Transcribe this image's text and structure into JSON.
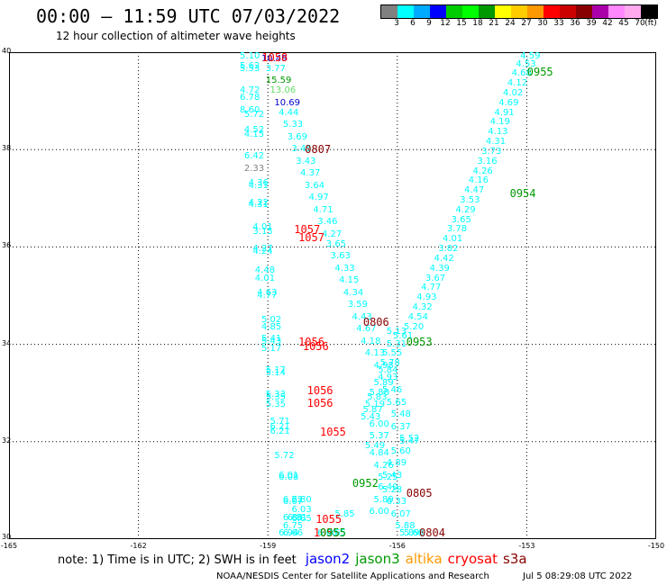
{
  "header": {
    "title": "00:00 — 11:59 UTC 07/03/2022",
    "subtitle": "12 hour collection of altimeter wave heights"
  },
  "legend": {
    "colors": [
      "#808080",
      "#00ffff",
      "#00aaff",
      "#0000ff",
      "#00cc00",
      "#00ff00",
      "#009900",
      "#ffff00",
      "#ffcc00",
      "#ff9900",
      "#ff0000",
      "#cc0000",
      "#880000",
      "#aa00aa",
      "#ff88ff",
      "#ffaaee",
      "#000000"
    ],
    "ticks": [
      "3",
      "6",
      "9",
      "12",
      "15",
      "18",
      "21",
      "24",
      "27",
      "30",
      "33",
      "36",
      "39",
      "42",
      "45",
      "70"
    ],
    "unit": "(ft)"
  },
  "axes": {
    "lat_labels": [
      "40",
      "38",
      "36",
      "34",
      "32",
      "30"
    ],
    "lon_labels": [
      "-165",
      "-162",
      "-159",
      "-156",
      "-153",
      "-150"
    ]
  },
  "map_data": {
    "extent": {
      "lon": [
        -165,
        -150
      ],
      "lat": [
        30,
        40
      ]
    },
    "points": [
      {
        "v": "5.10",
        "lon": -159.4,
        "lat": 39.9
      },
      {
        "v": "5.62",
        "lon": -159.4,
        "lat": 39.7
      },
      {
        "v": "5.53",
        "lon": -159.4,
        "lat": 39.65
      },
      {
        "v": "4.72",
        "lon": -159.4,
        "lat": 39.2
      },
      {
        "v": "6.78",
        "lon": -159.4,
        "lat": 39.05
      },
      {
        "v": "8.60",
        "lon": -159.4,
        "lat": 38.8
      },
      {
        "v": "5.72",
        "lon": -159.3,
        "lat": 38.7
      },
      {
        "v": "4.52",
        "lon": -159.3,
        "lat": 38.4
      },
      {
        "v": "4.15",
        "lon": -159.3,
        "lat": 38.3
      },
      {
        "v": "6.42",
        "lon": -159.3,
        "lat": 37.85
      },
      {
        "v": "4.36",
        "lon": -159.2,
        "lat": 37.3
      },
      {
        "v": "4.31",
        "lon": -159.2,
        "lat": 37.25
      },
      {
        "v": "4.22",
        "lon": -159.2,
        "lat": 36.9
      },
      {
        "v": "4.31",
        "lon": -159.2,
        "lat": 36.85
      },
      {
        "v": "4.01",
        "lon": -159.1,
        "lat": 36.4
      },
      {
        "v": "3.15",
        "lon": -159.1,
        "lat": 36.3
      },
      {
        "v": "4.27",
        "lon": -159.1,
        "lat": 35.95
      },
      {
        "v": "4.24",
        "lon": -159.1,
        "lat": 35.9
      },
      {
        "v": "4.48",
        "lon": -159.05,
        "lat": 35.5
      },
      {
        "v": "4.01",
        "lon": -159.05,
        "lat": 35.35
      },
      {
        "v": "4.63",
        "lon": -159.0,
        "lat": 35.05
      },
      {
        "v": "4.77",
        "lon": -159.0,
        "lat": 35.0
      },
      {
        "v": "5.02",
        "lon": -158.9,
        "lat": 34.5
      },
      {
        "v": "4.85",
        "lon": -158.9,
        "lat": 34.35
      },
      {
        "v": "5.41",
        "lon": -158.9,
        "lat": 34.1
      },
      {
        "v": "5.43",
        "lon": -158.9,
        "lat": 34.05
      },
      {
        "v": "5.17",
        "lon": -158.9,
        "lat": 33.9
      },
      {
        "v": "5.17",
        "lon": -158.8,
        "lat": 33.45
      },
      {
        "v": "5.14",
        "lon": -158.8,
        "lat": 33.4
      },
      {
        "v": "5.33",
        "lon": -158.8,
        "lat": 32.95
      },
      {
        "v": "5.35",
        "lon": -158.8,
        "lat": 32.75
      },
      {
        "v": "5.35",
        "lon": -158.8,
        "lat": 32.9
      },
      {
        "v": "5.71",
        "lon": -158.7,
        "lat": 32.4
      },
      {
        "v": "6.21",
        "lon": -158.7,
        "lat": 32.3
      },
      {
        "v": "6.21",
        "lon": -158.7,
        "lat": 32.2
      },
      {
        "v": "5.72",
        "lon": -158.6,
        "lat": 31.7
      },
      {
        "v": "6.01",
        "lon": -158.5,
        "lat": 31.3
      },
      {
        "v": "6.08",
        "lon": -158.5,
        "lat": 31.25
      },
      {
        "v": "6.72",
        "lon": -158.4,
        "lat": 30.8
      },
      {
        "v": "6.07",
        "lon": -158.4,
        "lat": 30.75
      },
      {
        "v": "6.80",
        "lon": -158.2,
        "lat": 30.8
      },
      {
        "v": "6.03",
        "lon": -158.2,
        "lat": 30.6
      },
      {
        "v": "6.88",
        "lon": -158.4,
        "lat": 30.42
      },
      {
        "v": "6.81",
        "lon": -158.3,
        "lat": 30.42
      },
      {
        "v": "6.75",
        "lon": -158.4,
        "lat": 30.25
      },
      {
        "v": "6.94",
        "lon": -158.5,
        "lat": 30.05
      },
      {
        "v": "6.66",
        "lon": -158.4,
        "lat": 30.05
      },
      {
        "v": "6.85",
        "lon": -158.2,
        "lat": 30.4
      },
      {
        "v": "15.59",
        "lon": -158.8,
        "lat": 39.4,
        "c": "#009900"
      },
      {
        "v": "13.06",
        "lon": -158.7,
        "lat": 39.2,
        "c": "#66dd66"
      },
      {
        "v": "10.69",
        "lon": -158.6,
        "lat": 38.95,
        "c": "#0000cc"
      },
      {
        "v": "10.49",
        "lon": -158.9,
        "lat": 39.85,
        "c": "#0000cc"
      },
      {
        "v": "3.77",
        "lon": -158.8,
        "lat": 39.65
      },
      {
        "v": "4.44",
        "lon": -158.5,
        "lat": 38.75
      },
      {
        "v": "5.33",
        "lon": -158.4,
        "lat": 38.5
      },
      {
        "v": "3.69",
        "lon": -158.3,
        "lat": 38.25
      },
      {
        "v": "3.45",
        "lon": -158.2,
        "lat": 38.0
      },
      {
        "v": "3.43",
        "lon": -158.1,
        "lat": 37.75
      },
      {
        "v": "4.37",
        "lon": -158.0,
        "lat": 37.5
      },
      {
        "v": "3.64",
        "lon": -157.9,
        "lat": 37.25
      },
      {
        "v": "4.97",
        "lon": -157.8,
        "lat": 37.0
      },
      {
        "v": "4.71",
        "lon": -157.7,
        "lat": 36.75
      },
      {
        "v": "3.46",
        "lon": -157.6,
        "lat": 36.5
      },
      {
        "v": "4.27",
        "lon": -157.5,
        "lat": 36.25
      },
      {
        "v": "3.65",
        "lon": -157.4,
        "lat": 36.05
      },
      {
        "v": "3.63",
        "lon": -157.3,
        "lat": 35.8
      },
      {
        "v": "4.33",
        "lon": -157.2,
        "lat": 35.55
      },
      {
        "v": "4.15",
        "lon": -157.1,
        "lat": 35.3
      },
      {
        "v": "4.34",
        "lon": -157.0,
        "lat": 35.05
      },
      {
        "v": "3.59",
        "lon": -156.9,
        "lat": 34.8
      },
      {
        "v": "4.43",
        "lon": -156.8,
        "lat": 34.55
      },
      {
        "v": "4.67",
        "lon": -156.7,
        "lat": 34.3
      },
      {
        "v": "4.18",
        "lon": -156.6,
        "lat": 34.05
      },
      {
        "v": "4.13",
        "lon": -156.5,
        "lat": 33.8
      },
      {
        "v": "4.98",
        "lon": -156.3,
        "lat": 33.55
      },
      {
        "v": "4.93",
        "lon": -156.2,
        "lat": 33.3
      },
      {
        "v": "5.46",
        "lon": -156.1,
        "lat": 33.05
      },
      {
        "v": "5.65",
        "lon": -156.0,
        "lat": 32.8
      },
      {
        "v": "5.48",
        "lon": -155.9,
        "lat": 32.55
      },
      {
        "v": "6.37",
        "lon": -155.9,
        "lat": 32.3
      },
      {
        "v": "5.52",
        "lon": -155.7,
        "lat": 32.05
      },
      {
        "v": "5.47",
        "lon": -155.7,
        "lat": 32.0
      },
      {
        "v": "5.60",
        "lon": -155.9,
        "lat": 31.8
      },
      {
        "v": "4.89",
        "lon": -156.0,
        "lat": 31.55
      },
      {
        "v": "5.43",
        "lon": -156.1,
        "lat": 31.3
      },
      {
        "v": "6.40",
        "lon": -156.2,
        "lat": 31.05
      },
      {
        "v": "5.89",
        "lon": -156.3,
        "lat": 30.8
      },
      {
        "v": "6.00",
        "lon": -156.4,
        "lat": 30.55
      },
      {
        "v": "5.85",
        "lon": -157.2,
        "lat": 30.5
      },
      {
        "v": "6.00",
        "lon": -157.6,
        "lat": 30.05
      },
      {
        "v": "5.65",
        "lon": -157.4,
        "lat": 30.05
      },
      {
        "v": "5.13",
        "lon": -156.0,
        "lat": 34.25
      },
      {
        "v": "5.31",
        "lon": -156.0,
        "lat": 34.0
      },
      {
        "v": "5.61",
        "lon": -155.85,
        "lat": 34.15
      },
      {
        "v": "5.55",
        "lon": -156.1,
        "lat": 33.8
      },
      {
        "v": "5.78",
        "lon": -156.15,
        "lat": 33.6
      },
      {
        "v": "5.84",
        "lon": -156.2,
        "lat": 33.45
      },
      {
        "v": "5.89",
        "lon": -156.3,
        "lat": 33.2
      },
      {
        "v": "5.88",
        "lon": -156.4,
        "lat": 33.0
      },
      {
        "v": "5.83",
        "lon": -156.45,
        "lat": 32.9
      },
      {
        "v": "5.19",
        "lon": -156.5,
        "lat": 32.75
      },
      {
        "v": "5.87",
        "lon": -156.55,
        "lat": 32.65
      },
      {
        "v": "5.43",
        "lon": -156.6,
        "lat": 32.5
      },
      {
        "v": "6.00",
        "lon": -156.4,
        "lat": 32.35
      },
      {
        "v": "5.37",
        "lon": -156.4,
        "lat": 32.1
      },
      {
        "v": "5.49",
        "lon": -156.5,
        "lat": 31.9
      },
      {
        "v": "4.84",
        "lon": -156.4,
        "lat": 31.75
      },
      {
        "v": "4.26",
        "lon": -156.3,
        "lat": 31.5
      },
      {
        "v": "5.25",
        "lon": -156.2,
        "lat": 31.25
      },
      {
        "v": "5.28",
        "lon": -156.1,
        "lat": 31.0
      },
      {
        "v": "6.33",
        "lon": -156.0,
        "lat": 30.75
      },
      {
        "v": "6.07",
        "lon": -155.9,
        "lat": 30.5
      },
      {
        "v": "5.88",
        "lon": -155.8,
        "lat": 30.25
      },
      {
        "v": "5.89",
        "lon": -155.7,
        "lat": 30.05
      },
      {
        "v": "5.68",
        "lon": -155.6,
        "lat": 29.85
      },
      {
        "v": "4.59",
        "lon": -152.9,
        "lat": 39.95
      },
      {
        "v": "4.53",
        "lon": -153.0,
        "lat": 39.75
      },
      {
        "v": "4.68",
        "lon": -153.1,
        "lat": 39.55
      },
      {
        "v": "4.12",
        "lon": -153.2,
        "lat": 39.35
      },
      {
        "v": "4.02",
        "lon": -153.3,
        "lat": 39.15
      },
      {
        "v": "4.69",
        "lon": -153.4,
        "lat": 38.95
      },
      {
        "v": "4.91",
        "lon": -153.5,
        "lat": 38.75
      },
      {
        "v": "4.19",
        "lon": -153.6,
        "lat": 38.55
      },
      {
        "v": "4.13",
        "lon": -153.65,
        "lat": 38.35
      },
      {
        "v": "4.31",
        "lon": -153.7,
        "lat": 38.15
      },
      {
        "v": "3.73",
        "lon": -153.8,
        "lat": 37.95
      },
      {
        "v": "3.16",
        "lon": -153.9,
        "lat": 37.75
      },
      {
        "v": "4.26",
        "lon": -154.0,
        "lat": 37.55
      },
      {
        "v": "4.16",
        "lon": -154.1,
        "lat": 37.35
      },
      {
        "v": "4.47",
        "lon": -154.2,
        "lat": 37.15
      },
      {
        "v": "3.53",
        "lon": -154.3,
        "lat": 36.95
      },
      {
        "v": "4.29",
        "lon": -154.4,
        "lat": 36.75
      },
      {
        "v": "3.65",
        "lon": -154.5,
        "lat": 36.55
      },
      {
        "v": "3.78",
        "lon": -154.6,
        "lat": 36.35
      },
      {
        "v": "4.01",
        "lon": -154.7,
        "lat": 36.15
      },
      {
        "v": "3.82",
        "lon": -154.8,
        "lat": 35.95
      },
      {
        "v": "4.42",
        "lon": -154.9,
        "lat": 35.75
      },
      {
        "v": "4.39",
        "lon": -155.0,
        "lat": 35.55
      },
      {
        "v": "3.67",
        "lon": -155.1,
        "lat": 35.35
      },
      {
        "v": "4.77",
        "lon": -155.2,
        "lat": 35.15
      },
      {
        "v": "4.93",
        "lon": -155.3,
        "lat": 34.95
      },
      {
        "v": "4.32",
        "lon": -155.4,
        "lat": 34.75
      },
      {
        "v": "4.54",
        "lon": -155.5,
        "lat": 34.55
      },
      {
        "v": "5.20",
        "lon": -155.6,
        "lat": 34.35
      },
      {
        "v": "2.33",
        "lon": -159.3,
        "lat": 37.6,
        "c": "#808080"
      }
    ],
    "time_labels": [
      {
        "t": "1058",
        "lon": -158.85,
        "lat": 39.9,
        "c": "#ff0000"
      },
      {
        "t": "0955",
        "lon": -152.7,
        "lat": 39.6,
        "c": "#009900"
      },
      {
        "t": "0807",
        "lon": -157.85,
        "lat": 38.0,
        "c": "#880000"
      },
      {
        "t": "0954",
        "lon": -153.1,
        "lat": 37.1,
        "c": "#009900"
      },
      {
        "t": "1057",
        "lon": -158.1,
        "lat": 36.35,
        "c": "#ff0000"
      },
      {
        "t": "1057",
        "lon": -158.0,
        "lat": 36.2,
        "c": "#ff0000"
      },
      {
        "t": "0806",
        "lon": -156.5,
        "lat": 34.45,
        "c": "#880000"
      },
      {
        "t": "1056",
        "lon": -158.0,
        "lat": 34.05,
        "c": "#ff0000"
      },
      {
        "t": "1056",
        "lon": -157.9,
        "lat": 33.95,
        "c": "#ff0000"
      },
      {
        "t": "0953",
        "lon": -155.5,
        "lat": 34.05,
        "c": "#009900"
      },
      {
        "t": "1056",
        "lon": -157.8,
        "lat": 33.05,
        "c": "#ff0000"
      },
      {
        "t": "1056",
        "lon": -157.8,
        "lat": 32.8,
        "c": "#ff0000"
      },
      {
        "t": "1055",
        "lon": -157.5,
        "lat": 32.2,
        "c": "#ff0000"
      },
      {
        "t": "0952",
        "lon": -156.75,
        "lat": 31.15,
        "c": "#009900"
      },
      {
        "t": "0805",
        "lon": -155.5,
        "lat": 30.95,
        "c": "#880000"
      },
      {
        "t": "1055",
        "lon": -157.6,
        "lat": 30.4,
        "c": "#ff0000"
      },
      {
        "t": "1055",
        "lon": -157.65,
        "lat": 30.0,
        "c": "#ff0000"
      },
      {
        "t": "0955",
        "lon": -157.5,
        "lat": 30.0,
        "c": "#009900"
      },
      {
        "t": "0804",
        "lon": -155.2,
        "lat": 30.0,
        "c": "#880000"
      }
    ]
  },
  "footer": {
    "note": "note: 1) Time is in UTC; 2) SWH is in feet",
    "satellites": [
      {
        "name": "jason2",
        "color": "#0000ff"
      },
      {
        "name": "jason3",
        "color": "#009900"
      },
      {
        "name": "altika",
        "color": "#ff9900"
      },
      {
        "name": "cryosat",
        "color": "#ff0000"
      },
      {
        "name": "s3a",
        "color": "#880000"
      }
    ],
    "credit": "NOAA/NESDIS Center for Satellite Applications and Research",
    "timestamp": "Jul  5 08:29:08 UTC 2022"
  }
}
